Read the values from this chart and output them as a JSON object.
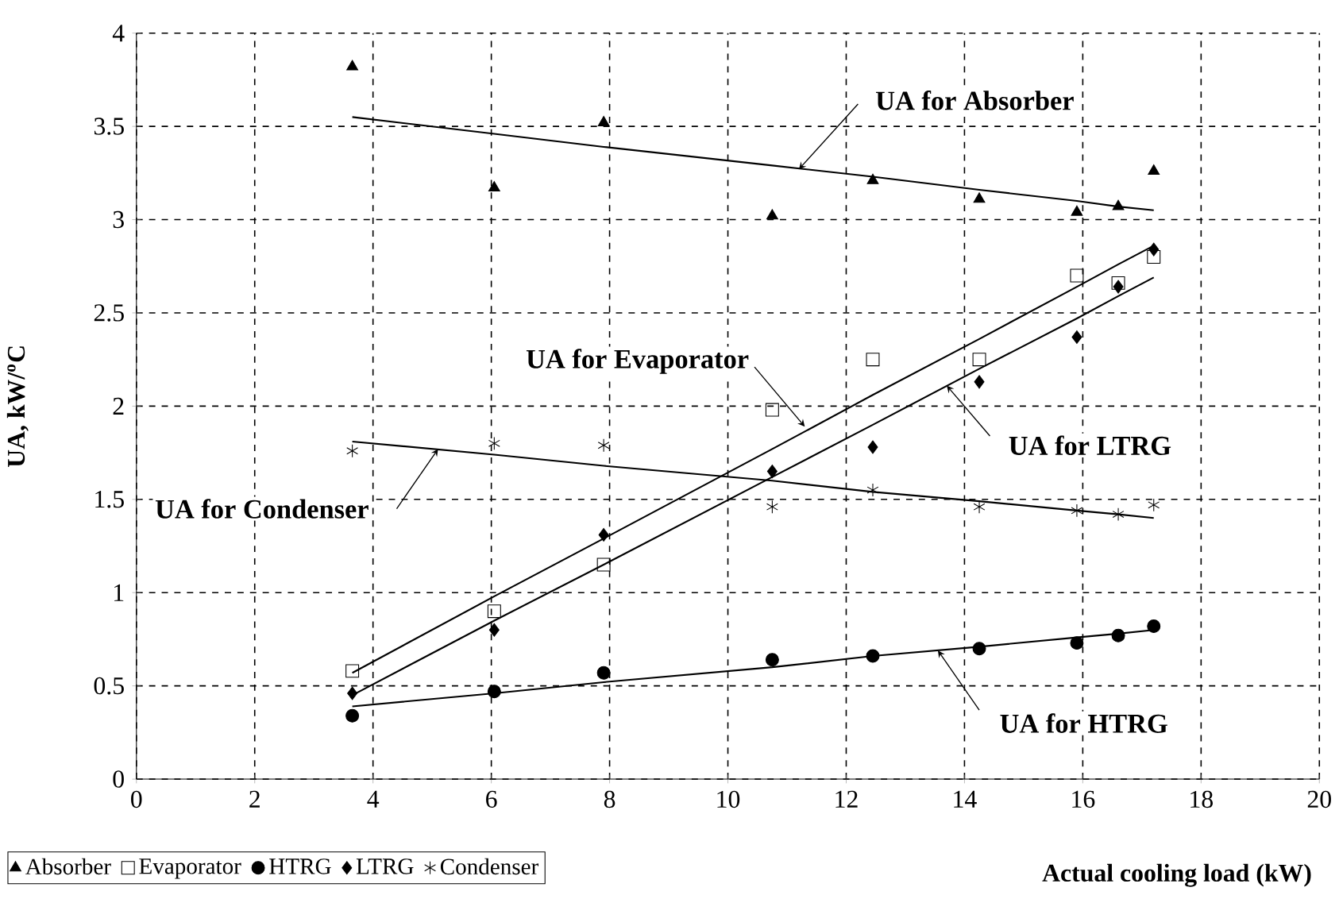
{
  "chart_data": {
    "type": "scatter",
    "xlabel": "Actual cooling load (kW)",
    "ylabel": "UA, kW/$^{o}$C",
    "x": [
      3.65,
      6.05,
      7.9,
      10.75,
      12.45,
      14.25,
      15.9,
      16.6,
      17.2
    ],
    "series": [
      {
        "name": "Absorber",
        "color": "#000000",
        "marker": "triangle",
        "values": [
          3.82,
          3.17,
          3.52,
          3.02,
          3.21,
          3.11,
          3.04,
          3.07,
          3.26
        ]
      },
      {
        "name": "Evaporator",
        "color": "#000000",
        "marker": "square",
        "values": [
          0.58,
          0.9,
          1.15,
          1.98,
          2.25,
          2.25,
          2.7,
          2.66,
          2.8
        ]
      },
      {
        "name": "HTRG",
        "color": "#000000",
        "marker": "circle",
        "values": [
          0.34,
          0.47,
          0.57,
          0.64,
          0.66,
          0.7,
          0.73,
          0.77,
          0.82
        ]
      },
      {
        "name": "LTRG",
        "color": "#000000",
        "marker": "diamond",
        "values": [
          0.46,
          0.8,
          1.31,
          1.65,
          1.78,
          2.13,
          2.37,
          2.64,
          2.84
        ]
      },
      {
        "name": "Condenser",
        "color": "#000000",
        "marker": "cross",
        "values": [
          1.76,
          1.8,
          1.79,
          1.46,
          1.55,
          1.46,
          1.44,
          1.42,
          1.47
        ]
      },
      {
        "type": "line",
        "color": "#000000",
        "values": [
          3.55,
          3.46,
          3.39,
          3.29,
          3.23,
          3.16,
          3.1,
          3.07,
          3.05
        ]
      },
      {
        "type": "line",
        "color": "#000000",
        "values": [
          0.57,
          0.98,
          1.29,
          1.77,
          2.06,
          2.36,
          2.64,
          2.76,
          2.86
        ]
      },
      {
        "type": "line",
        "color": "#000000",
        "values": [
          0.45,
          0.85,
          1.15,
          1.62,
          1.9,
          2.2,
          2.47,
          2.59,
          2.69
        ]
      },
      {
        "type": "line",
        "color": "#000000",
        "values": [
          0.39,
          0.46,
          0.52,
          0.6,
          0.66,
          0.71,
          0.76,
          0.78,
          0.8
        ]
      },
      {
        "type": "line",
        "color": "#000000",
        "values": [
          1.81,
          1.74,
          1.68,
          1.6,
          1.54,
          1.49,
          1.44,
          1.42,
          1.4
        ]
      }
    ],
    "annotations": [
      {
        "text": "UA for Absorber",
        "x": 11.2,
        "y": 3.27
      },
      {
        "text": "UA for Evaporator",
        "x": 11.3,
        "y": 1.89
      },
      {
        "text": "UA for LTRG",
        "x": 13.7,
        "y": 2.11
      },
      {
        "text": "UA for Condenser",
        "x": 5.1,
        "y": 1.77
      },
      {
        "text": "UA for HTRG",
        "x": 13.55,
        "y": 0.69
      }
    ],
    "xlim": [
      0,
      20
    ],
    "ylim": [
      0,
      4
    ],
    "xticks": [
      0,
      2,
      4,
      6,
      8,
      10,
      12,
      14,
      16,
      18,
      20
    ],
    "yticks": [
      0,
      0.5,
      1,
      1.5,
      2,
      2.5,
      3,
      3.5,
      4
    ],
    "grid": true,
    "legend": "bottom left"
  }
}
